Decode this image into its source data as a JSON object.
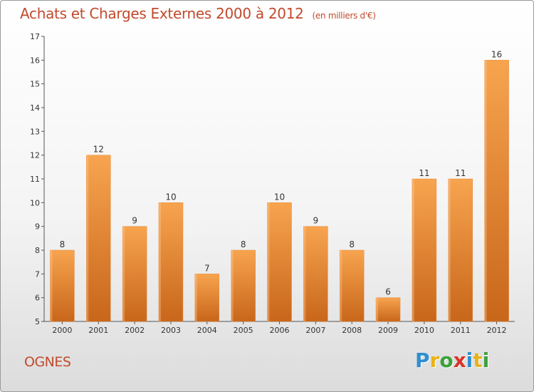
{
  "header": {
    "title": "Achats et Charges Externes 2000 à 2012",
    "unit": "(en milliers d'€)"
  },
  "commune": "OGNES",
  "logo": {
    "letters": [
      {
        "ch": "P",
        "color": "#2f8fd0"
      },
      {
        "ch": "r",
        "color": "#e9b21a"
      },
      {
        "ch": "o",
        "color": "#3aa23a"
      },
      {
        "ch": "x",
        "color": "#d8342a"
      },
      {
        "ch": "i",
        "color": "#2f8fd0"
      },
      {
        "ch": "t",
        "color": "#e9b21a"
      },
      {
        "ch": "i",
        "color": "#3aa23a"
      }
    ]
  },
  "chart_data": {
    "type": "bar",
    "title": "Achats et Charges Externes 2000 à 2012",
    "subtitle": "(en milliers d'€)",
    "xlabel": "",
    "ylabel": "",
    "categories": [
      "2000",
      "2001",
      "2002",
      "2003",
      "2004",
      "2005",
      "2006",
      "2007",
      "2008",
      "2009",
      "2010",
      "2011",
      "2012"
    ],
    "values": [
      8,
      12,
      9,
      10,
      7,
      8,
      10,
      9,
      8,
      6,
      11,
      11,
      16
    ],
    "ylim": [
      5,
      17
    ],
    "yticks": [
      5,
      6,
      7,
      8,
      9,
      10,
      11,
      12,
      13,
      14,
      15,
      16,
      17
    ],
    "grid": false,
    "bar_color_top": "#f7a44f",
    "bar_color_bottom": "#c8661a",
    "text_color": "#c14a2d"
  }
}
